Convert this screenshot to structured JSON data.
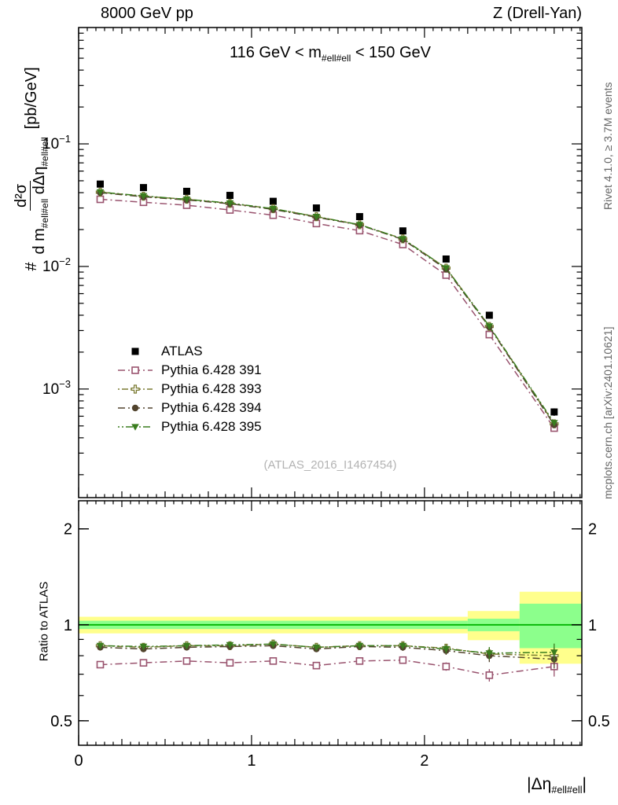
{
  "header": {
    "left": "8000 GeV pp",
    "right": "Z (Drell-Yan)"
  },
  "watermarks": {
    "analysis": "(ATLAS_2016_I1467454)",
    "rivet": "Rivet 4.1.0, ≥ 3.7M events",
    "mcplots": "mcplots.cern.ch [arXiv:2401.10621]"
  },
  "chart_data": {
    "type": "line",
    "title_parts": {
      "pre": "116 GeV < m",
      "sub": "#ell#ell",
      "post": " < 150 GeV"
    },
    "xlabel_parts": {
      "pre": "|Δη",
      "sub": "#ell#ell",
      "post": "|"
    },
    "ylabel_main_parts": {
      "prefix": "#",
      "numerator": "d²σ",
      "den1": "d m",
      "den1_sub": "#ell#ell",
      "den2": " dΔη",
      "den2_sub": "#ell#ell",
      "units": "[pb/GeV]"
    },
    "ylabel_ratio": "Ratio to ATLAS",
    "xlim": [
      0,
      2.91
    ],
    "ylim_main": [
      0.00013,
      0.89
    ],
    "ylim_main_scale": "log",
    "ylim_ratio": [
      0.419,
      2.45
    ],
    "ylim_ratio_scale": "log",
    "grid": false,
    "legend_position": "inside-left-middle",
    "x_ticks": [
      0,
      1,
      2
    ],
    "y_ticks_main": [
      0.1,
      0.01,
      0.001
    ],
    "y_ticks_ratio": [
      2,
      1,
      0.5
    ],
    "x": [
      0.125,
      0.375,
      0.625,
      0.875,
      1.125,
      1.375,
      1.625,
      1.875,
      2.125,
      2.375,
      2.75
    ],
    "series": [
      {
        "name": "ATLAS",
        "label": "ATLAS",
        "marker": "square-filled",
        "color": "#000000",
        "dash": null,
        "values": [
          0.047,
          0.044,
          0.041,
          0.038,
          0.034,
          0.03,
          0.0255,
          0.0195,
          0.0115,
          0.004,
          0.00065
        ],
        "err_rel": [
          0.025,
          0.025,
          0.025,
          0.025,
          0.025,
          0.025,
          0.03,
          0.03,
          0.035,
          0.05,
          0.07
        ]
      },
      {
        "name": "Pythia 6.428 391",
        "label": "Pythia 6.428 391",
        "marker": "square-open",
        "color": "#99536e",
        "dash": [
          9,
          4,
          2,
          4
        ],
        "values": [
          0.0353,
          0.0334,
          0.0316,
          0.0289,
          0.0262,
          0.0224,
          0.0196,
          0.0151,
          0.0085,
          0.00278,
          0.00048
        ],
        "ratio": [
          0.75,
          0.76,
          0.77,
          0.76,
          0.77,
          0.745,
          0.77,
          0.775,
          0.74,
          0.695,
          0.74
        ],
        "err_rel": [
          0.012,
          0.012,
          0.012,
          0.012,
          0.012,
          0.012,
          0.015,
          0.015,
          0.02,
          0.035,
          0.06
        ]
      },
      {
        "name": "Pythia 6.428 393",
        "label": "Pythia 6.428 393",
        "marker": "plus-open",
        "color": "#7b7b33",
        "dash": [
          2,
          3,
          8,
          3
        ],
        "values": [
          0.0404,
          0.0374,
          0.0353,
          0.0327,
          0.0296,
          0.0255,
          0.0219,
          0.0168,
          0.0097,
          0.00324,
          0.00052
        ],
        "ratio": [
          0.86,
          0.85,
          0.86,
          0.86,
          0.87,
          0.85,
          0.86,
          0.86,
          0.845,
          0.81,
          0.8
        ],
        "err_rel": [
          0.012,
          0.012,
          0.012,
          0.012,
          0.012,
          0.012,
          0.015,
          0.015,
          0.02,
          0.035,
          0.055
        ]
      },
      {
        "name": "Pythia 6.428 394",
        "label": "Pythia 6.428 394",
        "marker": "circle-filled",
        "color": "#52442e",
        "dash": [
          9,
          4,
          2,
          4
        ],
        "values": [
          0.04,
          0.037,
          0.0349,
          0.0325,
          0.0292,
          0.0252,
          0.0218,
          0.0166,
          0.0095,
          0.0032,
          0.00051
        ],
        "ratio": [
          0.85,
          0.84,
          0.85,
          0.855,
          0.86,
          0.84,
          0.855,
          0.85,
          0.83,
          0.8,
          0.78
        ],
        "err_rel": [
          0.012,
          0.012,
          0.012,
          0.012,
          0.012,
          0.012,
          0.015,
          0.015,
          0.02,
          0.035,
          0.055
        ]
      },
      {
        "name": "Pythia 6.428 395",
        "label": "Pythia 6.428 395",
        "marker": "triangle-down-filled",
        "color": "#3a7d1e",
        "dash": [
          2,
          3,
          2,
          3,
          9,
          3
        ],
        "values": [
          0.0404,
          0.0376,
          0.0353,
          0.0329,
          0.0296,
          0.0255,
          0.0219,
          0.0168,
          0.0097,
          0.00326,
          0.00053
        ],
        "ratio": [
          0.86,
          0.855,
          0.86,
          0.865,
          0.87,
          0.85,
          0.86,
          0.86,
          0.84,
          0.815,
          0.82
        ],
        "err_rel": [
          0.012,
          0.012,
          0.012,
          0.012,
          0.012,
          0.012,
          0.015,
          0.015,
          0.02,
          0.035,
          0.055
        ]
      }
    ],
    "ratio_reference_line": 1,
    "bands": [
      {
        "x0": 0.0,
        "x1": 2.25,
        "yellow": [
          0.94,
          1.06
        ],
        "green": [
          0.97,
          1.03
        ]
      },
      {
        "x0": 2.25,
        "x1": 2.55,
        "yellow": [
          0.895,
          1.105
        ],
        "green": [
          0.955,
          1.045
        ]
      },
      {
        "x0": 2.55,
        "x1": 2.91,
        "yellow": [
          0.755,
          1.27
        ],
        "green": [
          0.845,
          1.165
        ]
      }
    ],
    "band_colors": {
      "yellow": "#ffff8c",
      "green": "#8cff8c"
    },
    "ratio_line_color": "#00b400"
  }
}
